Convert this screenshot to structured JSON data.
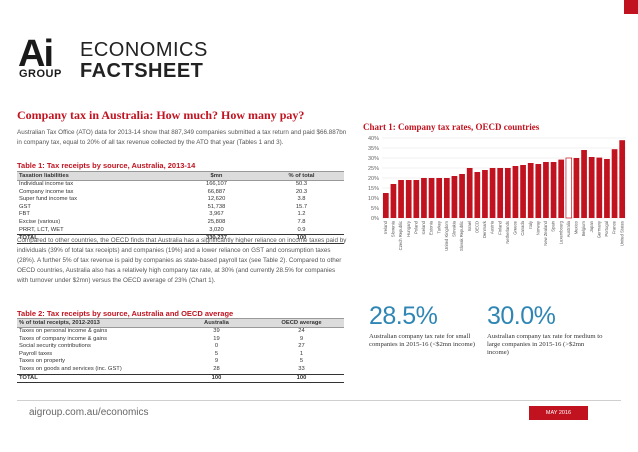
{
  "header": {
    "logo_text": "Ai",
    "logo_group": "GROUP",
    "title_line1": "ECONOMICS",
    "title_line2": "FACTSHEET"
  },
  "page_title": "Company tax in Australia: How much? How many pay?",
  "intro_text": "Australian Tax Office (ATO) data for 2013-14 show that 887,349 companies submitted a tax return and paid $66.887bn in company tax, equal to 20% of all tax revenue collected by the ATO that year (Tables 1 and 3).",
  "table1": {
    "title": "Table 1: Tax receipts by source, Australia, 2013-14",
    "headers": [
      "Taxation liabilities",
      "$mn",
      "% of total"
    ],
    "rows": [
      [
        "Individual income tax",
        "166,107",
        "50.3"
      ],
      [
        "Company income tax",
        "66,887",
        "20.3"
      ],
      [
        "Super fund income tax",
        "12,620",
        "3.8"
      ],
      [
        "GST",
        "51,738",
        "15.7"
      ],
      [
        "FBT",
        "3,967",
        "1.2"
      ],
      [
        "Excise (various)",
        "25,808",
        "7.8"
      ],
      [
        "PRRT, LCT, WET",
        "3,020",
        "0.9"
      ]
    ],
    "total": [
      "TOTAL",
      "330,237",
      "100"
    ]
  },
  "body_text": "Compared to other countries, the OECD finds that Australia has a significantly higher reliance on income taxes paid by individuals (39% of total tax receipts) and companies (19%) and a lower reliance on GST and consumption taxes (28%). A further 5% of tax revenue is paid by companies as state-based payroll tax (see Table 2). Compared to other OECD countries, Australia also has a relatively high company tax rate, at 30% (and currently 28.5% for companies with turnover under $2mn) versus the OECD average of 23% (Chart 1).",
  "table2": {
    "title": "Table 2: Tax receipts by source, Australia and OECD average",
    "headers": [
      "% of total receipts, 2012-2013",
      "Australia",
      "OECD average"
    ],
    "rows": [
      [
        "Taxes on personal income & gains",
        "39",
        "24"
      ],
      [
        "Taxes of company income & gains",
        "19",
        "9"
      ],
      [
        "Social security contributions",
        "0",
        "27"
      ],
      [
        "Payroll taxes",
        "5",
        "1"
      ],
      [
        "Taxes on property",
        "9",
        "5"
      ],
      [
        "Taxes on goods and services (inc. GST)",
        "28",
        "33"
      ]
    ],
    "total": [
      "TOTAL",
      "100",
      "100"
    ]
  },
  "chart_data": {
    "type": "bar",
    "title": "Chart 1: Company tax rates, OECD countries",
    "ylim": [
      0,
      40
    ],
    "yticks": [
      "0%",
      "5%",
      "10%",
      "15%",
      "20%",
      "25%",
      "30%",
      "35%",
      "40%"
    ],
    "grid": true,
    "categories": [
      "Ireland",
      "Slovenia",
      "Czech Republic",
      "Hungary",
      "Poland",
      "Iceland",
      "Estonia",
      "Turkey",
      "United Kingdom",
      "Slovakia",
      "Slovak Republic",
      "Israel",
      "OECD",
      "Denmark",
      "Austria",
      "Finland",
      "Netherlands",
      "Greece",
      "Canada",
      "Italy",
      "Norway",
      "New Zealand",
      "Spain",
      "Luxembourg",
      "Australia",
      "Mexico",
      "Belgium",
      "Japan",
      "Germany",
      "Portugal",
      "France",
      "United States"
    ],
    "values": [
      12.5,
      17,
      19,
      19,
      19,
      20,
      20,
      20,
      20,
      21,
      22,
      25,
      23,
      24,
      25,
      25,
      25,
      26,
      26.5,
      27.5,
      27,
      28,
      28,
      29.2,
      30,
      30,
      34,
      30.5,
      30.2,
      29.5,
      34.4,
      38.9
    ],
    "highlight_index": 24,
    "bar_color": "#c1121f",
    "highlight_color": "#ffffff"
  },
  "stats": [
    {
      "value": "28.5%",
      "desc": "Australian company tax rate for small companies in 2015-16 (<$2mn income)"
    },
    {
      "value": "30.0%",
      "desc": "Australian company tax rate for medium to large companies in 2015-16 (>$2mn income)"
    }
  ],
  "footer": {
    "url": "aigroup.com.au/economics",
    "date": "MAY 2016"
  },
  "colors": {
    "brand_red": "#c1121f",
    "accent_blue": "#2f86b4"
  }
}
